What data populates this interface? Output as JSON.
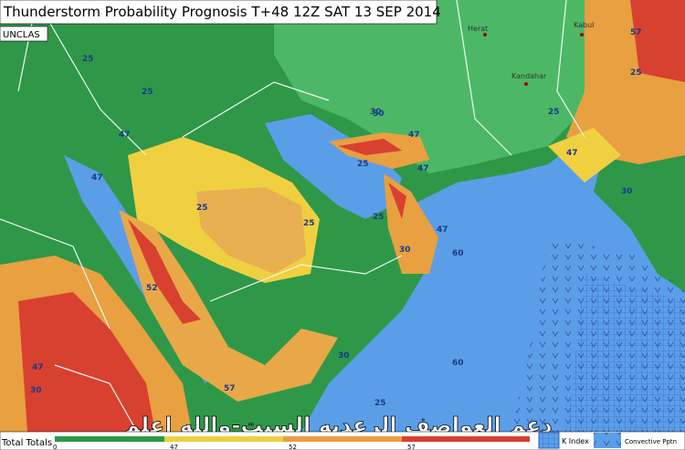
{
  "header": {
    "title": "Thunderstorm Probability Prognosis T+48 12Z SAT 13 SEP 2014",
    "classification": "UNCLAS"
  },
  "cities": [
    {
      "label": "Herat"
    },
    {
      "label": "Kabul"
    },
    {
      "label": "Kandahar"
    }
  ],
  "contour_labels": [
    "25",
    "25",
    "47",
    "47",
    "25",
    "30",
    "25",
    "47",
    "52",
    "25",
    "30",
    "47",
    "25",
    "57",
    "30",
    "47",
    "25",
    "30",
    "60",
    "60",
    "30",
    "25",
    "57",
    "47",
    "30",
    "47",
    "25"
  ],
  "watermark": "دعم العواصف الرعديه السبت-والله اعلم",
  "legend": {
    "title": "Total Totals",
    "scale_labels": [
      "0",
      "47",
      "52",
      "57"
    ],
    "k_index": "K Index",
    "convective": "Convective Pptn"
  }
}
